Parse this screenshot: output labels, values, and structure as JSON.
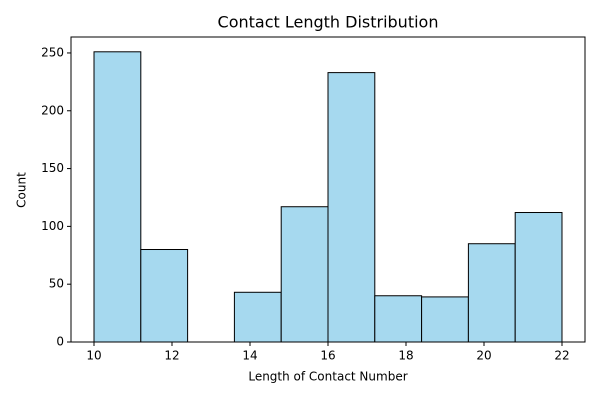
{
  "chart_data": {
    "type": "histogram",
    "title": "Contact Length Distribution",
    "x_label": "Length of Contact Number",
    "y_label": "Count",
    "bins": [
      10,
      11.2,
      12.4,
      13.6,
      14.8,
      16,
      17.2,
      18.4,
      19.6,
      20.8,
      22
    ],
    "values": [
      251,
      80,
      0,
      43,
      117,
      233,
      40,
      39,
      85,
      112
    ],
    "color": "#a6d9ef",
    "edge_color": "#000000",
    "xlim": [
      9.41,
      22.59
    ],
    "xticks": [
      10,
      12,
      14,
      16,
      18,
      20,
      22
    ],
    "ylim": [
      0,
      263.8
    ],
    "yticks": [
      0,
      50,
      100,
      150,
      200,
      250
    ]
  }
}
